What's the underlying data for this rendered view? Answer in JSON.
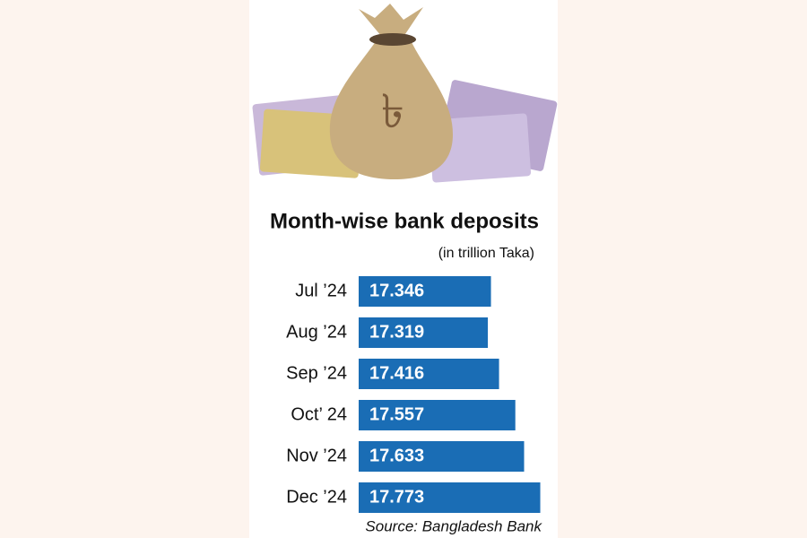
{
  "chart_data": {
    "type": "bar",
    "orientation": "horizontal",
    "title": "Month-wise bank deposits",
    "subtitle": "(in trillion Taka)",
    "categories": [
      "Jul ’24",
      "Aug ’24",
      "Sep ’24",
      "Oct’ 24",
      "Nov ’24",
      "Dec ’24"
    ],
    "values": [
      17.346,
      17.319,
      17.416,
      17.557,
      17.633,
      17.773
    ],
    "color": "#1a6db5",
    "xlim": [
      16.2,
      17.8
    ],
    "source": "Source: Bangladesh Bank"
  }
}
